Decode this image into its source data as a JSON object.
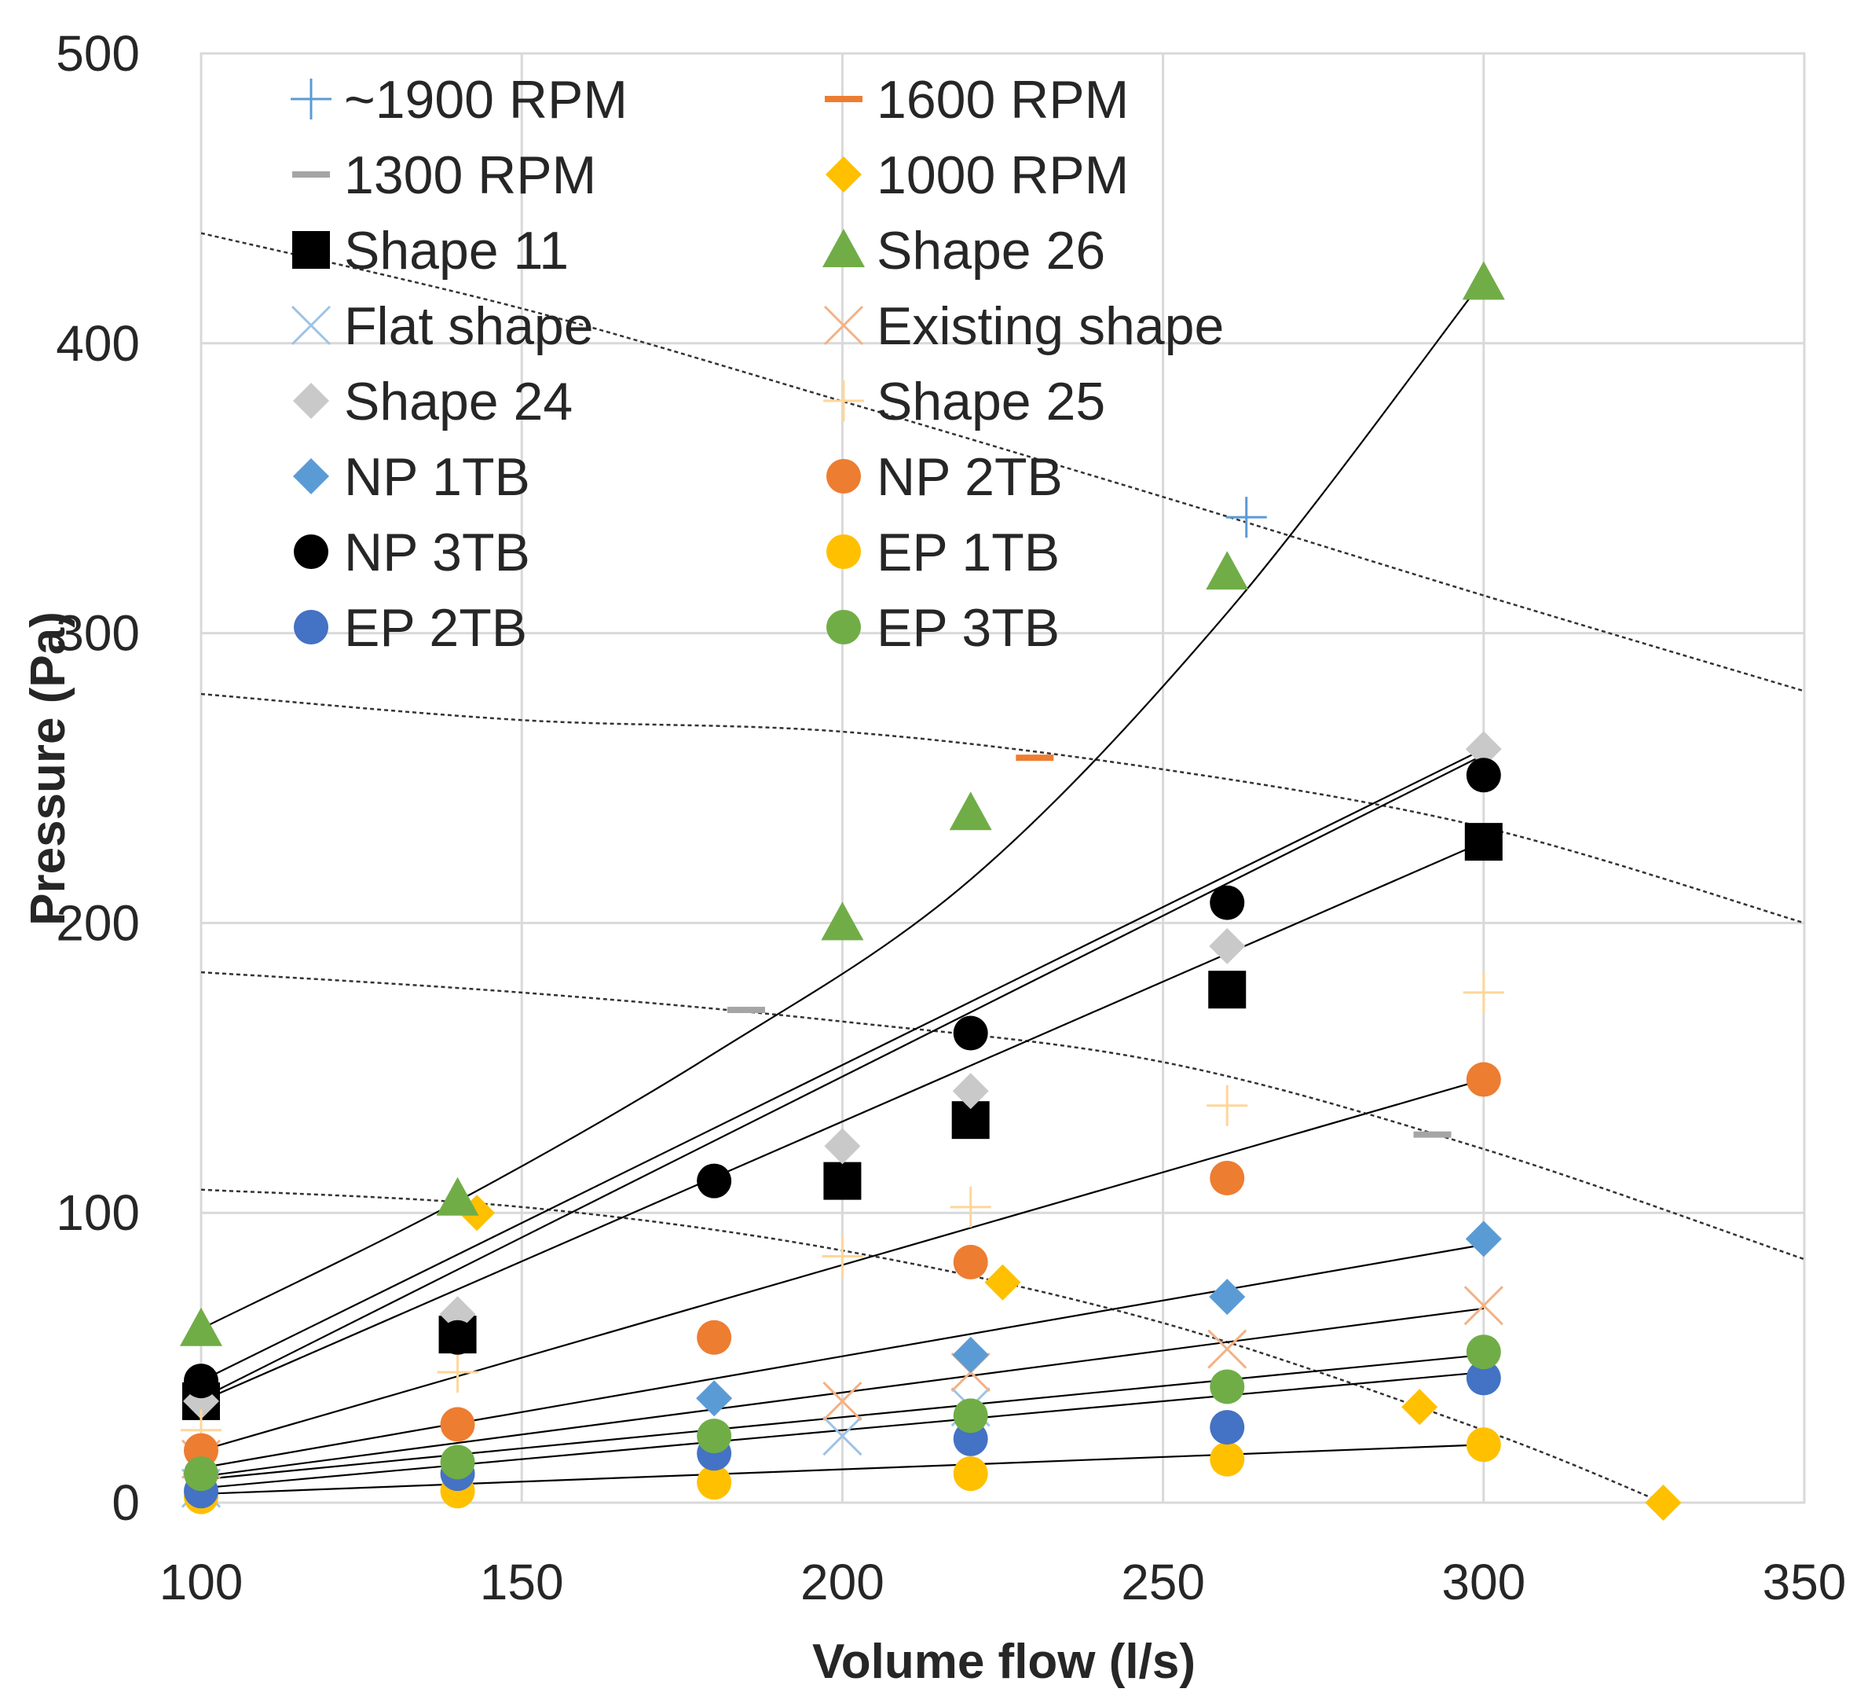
{
  "chart_data": {
    "type": "scatter",
    "title": "",
    "xlabel": "Volume flow (l/s)",
    "ylabel": "Pressure (Pa)",
    "xlim": [
      100,
      350
    ],
    "ylim": [
      0,
      500
    ],
    "xticks": [
      100,
      150,
      200,
      250,
      300,
      350
    ],
    "yticks": [
      0,
      100,
      200,
      300,
      400,
      500
    ],
    "xtick_labels": [
      "100",
      "150",
      "200",
      "250",
      "300",
      "350"
    ],
    "ytick_labels": [
      "0",
      "100",
      "200",
      "300",
      "400",
      "500"
    ],
    "grid": true,
    "legend_position": "top-left inside",
    "series": [
      {
        "name": "~1900 RPM",
        "marker": "plus",
        "color": "#5B9BD5",
        "x": [
          263
        ],
        "y": [
          340
        ]
      },
      {
        "name": "1600 RPM",
        "marker": "dash",
        "color": "#ED7D31",
        "x": [
          230
        ],
        "y": [
          257
        ]
      },
      {
        "name": "1300 RPM",
        "marker": "dash",
        "color": "#A5A5A5",
        "x": [
          185,
          292
        ],
        "y": [
          170,
          127
        ]
      },
      {
        "name": "1000 RPM",
        "marker": "diamond",
        "color": "#FFC000",
        "x": [
          143,
          225,
          290,
          328
        ],
        "y": [
          100,
          76,
          33,
          0
        ]
      },
      {
        "name": "Shape 11",
        "marker": "square",
        "color": "#000000",
        "x": [
          100,
          140,
          200,
          220,
          260,
          300
        ],
        "y": [
          35,
          58,
          111,
          132,
          177,
          228
        ]
      },
      {
        "name": "Shape 26",
        "marker": "triangle",
        "color": "#70AD47",
        "x": [
          100,
          140,
          200,
          220,
          260,
          300
        ],
        "y": [
          60,
          105,
          200,
          238,
          321,
          421
        ]
      },
      {
        "name": "Flat shape",
        "marker": "x",
        "color": "#9DC3E6",
        "x": [
          100,
          200,
          220
        ],
        "y": [
          5,
          23,
          33
        ]
      },
      {
        "name": "Existing shape",
        "marker": "x",
        "color": "#F4B183",
        "x": [
          100,
          200,
          220,
          260,
          300
        ],
        "y": [
          15,
          35,
          45,
          53,
          68
        ]
      },
      {
        "name": "Shape 24",
        "marker": "diamond",
        "color": "#C9C9C9",
        "x": [
          100,
          140,
          200,
          220,
          260,
          300
        ],
        "y": [
          35,
          65,
          123,
          142,
          192,
          260
        ]
      },
      {
        "name": "Shape 25",
        "marker": "plus",
        "color": "#FFD699",
        "x": [
          100,
          140,
          200,
          220,
          260,
          300
        ],
        "y": [
          25,
          45,
          85,
          102,
          137,
          176
        ]
      },
      {
        "name": "NP 1TB",
        "marker": "diamond",
        "color": "#5B9BD5",
        "x": [
          100,
          180,
          220,
          260,
          300
        ],
        "y": [
          10,
          36,
          51,
          71,
          91
        ]
      },
      {
        "name": "NP 2TB",
        "marker": "circle",
        "color": "#ED7D31",
        "x": [
          100,
          140,
          180,
          220,
          260,
          300
        ],
        "y": [
          18,
          27,
          57,
          83,
          112,
          146
        ]
      },
      {
        "name": "NP 3TB",
        "marker": "circle",
        "color": "#000000",
        "x": [
          100,
          140,
          180,
          220,
          260,
          300
        ],
        "y": [
          42,
          57,
          111,
          162,
          207,
          251
        ]
      },
      {
        "name": "EP 1TB",
        "marker": "circle",
        "color": "#FFC000",
        "x": [
          100,
          140,
          180,
          220,
          260,
          300
        ],
        "y": [
          2,
          4,
          7,
          10,
          15,
          20
        ]
      },
      {
        "name": "EP 2TB",
        "marker": "circle",
        "color": "#4472C4",
        "x": [
          100,
          140,
          180,
          220,
          260,
          300
        ],
        "y": [
          4,
          10,
          17,
          22,
          26,
          43
        ]
      },
      {
        "name": "EP 3TB",
        "marker": "circle",
        "color": "#70AD47",
        "x": [
          100,
          140,
          180,
          220,
          260,
          300
        ],
        "y": [
          10,
          14,
          23,
          30,
          40,
          52
        ]
      }
    ],
    "trendlines": [
      {
        "for": "Shape 26",
        "x": [
          100,
          140,
          180,
          220,
          260,
          300
        ],
        "y": [
          60,
          104,
          155,
          215,
          307,
          422
        ]
      },
      {
        "for": "NP 3TB",
        "x": [
          100,
          300
        ],
        "y": [
          42,
          260
        ]
      },
      {
        "for": "Shape 24",
        "x": [
          100,
          300
        ],
        "y": [
          36,
          258
        ]
      },
      {
        "for": "Shape 11",
        "x": [
          100,
          300
        ],
        "y": [
          35,
          228
        ]
      },
      {
        "for": "NP 2TB",
        "x": [
          100,
          300
        ],
        "y": [
          18,
          146
        ]
      },
      {
        "for": "NP 1TB",
        "x": [
          100,
          300
        ],
        "y": [
          12,
          89
        ]
      },
      {
        "for": "Existing shape",
        "x": [
          100,
          300
        ],
        "y": [
          9,
          67
        ]
      },
      {
        "for": "EP 3TB",
        "x": [
          100,
          300
        ],
        "y": [
          8,
          51
        ]
      },
      {
        "for": "EP 2TB",
        "x": [
          100,
          300
        ],
        "y": [
          5,
          45
        ]
      },
      {
        "for": "EP 1TB",
        "x": [
          100,
          300
        ],
        "y": [
          3,
          20
        ]
      }
    ],
    "fan_curves": [
      {
        "name": "~1900 RPM",
        "x": [
          100,
          150,
          200,
          250,
          300,
          350
        ],
        "y": [
          438,
          412,
          380,
          347,
          313,
          280
        ]
      },
      {
        "name": "1600 RPM",
        "x": [
          100,
          150,
          200,
          250,
          300,
          350
        ],
        "y": [
          279,
          270,
          266,
          253,
          233,
          200
        ]
      },
      {
        "name": "1300 RPM",
        "x": [
          100,
          150,
          200,
          250,
          300,
          350
        ],
        "y": [
          183,
          176,
          166,
          152,
          122,
          84
        ]
      },
      {
        "name": "1000 RPM",
        "x": [
          100,
          150,
          200,
          250,
          300,
          328
        ],
        "y": [
          108,
          102,
          87,
          62,
          25,
          0
        ]
      }
    ]
  }
}
